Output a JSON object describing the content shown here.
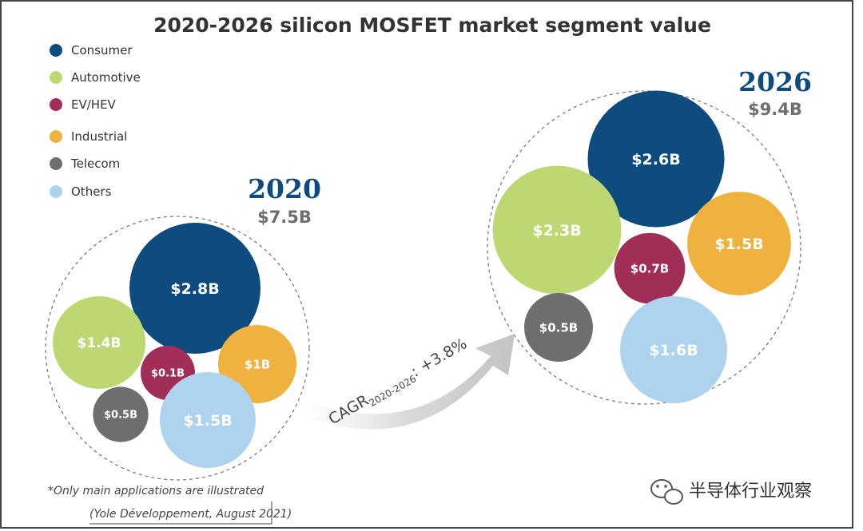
{
  "chart_data": {
    "type": "bubble",
    "title": "2020-2026 silicon MOSFET market segment value",
    "legend": [
      {
        "name": "Consumer",
        "color": "#0e4c80"
      },
      {
        "name": "Automotive",
        "color": "#bdd772"
      },
      {
        "name": "EV/HEV",
        "color": "#a12e57"
      },
      {
        "name": "Industrial",
        "color": "#f0b23e"
      },
      {
        "name": "Telecom",
        "color": "#6d6e70"
      },
      {
        "name": "Others",
        "color": "#aed3ef"
      }
    ],
    "groups": [
      {
        "year": "2020",
        "total": "$7.5B",
        "bubbles": [
          {
            "segment": "Consumer",
            "value": 2.8,
            "label": "$2.8B"
          },
          {
            "segment": "Automotive",
            "value": 1.4,
            "label": "$1.4B"
          },
          {
            "segment": "EV/HEV",
            "value": 0.1,
            "label": "$0.1B"
          },
          {
            "segment": "Industrial",
            "value": 1.0,
            "label": "$1B"
          },
          {
            "segment": "Telecom",
            "value": 0.5,
            "label": "$0.5B"
          },
          {
            "segment": "Others",
            "value": 1.5,
            "label": "$1.5B"
          }
        ]
      },
      {
        "year": "2026",
        "total": "$9.4B",
        "bubbles": [
          {
            "segment": "Consumer",
            "value": 2.6,
            "label": "$2.6B"
          },
          {
            "segment": "Automotive",
            "value": 2.3,
            "label": "$2.3B"
          },
          {
            "segment": "EV/HEV",
            "value": 0.7,
            "label": "$0.7B"
          },
          {
            "segment": "Industrial",
            "value": 1.5,
            "label": "$1.5B"
          },
          {
            "segment": "Telecom",
            "value": 0.5,
            "label": "$0.5B"
          },
          {
            "segment": "Others",
            "value": 1.6,
            "label": "$1.6B"
          }
        ]
      }
    ],
    "cagr": {
      "prefix": "CAGR",
      "period": "2020-2026",
      "suffix": ": +3.8%"
    },
    "note": "*Only main applications are illustrated",
    "source": "(Yole Développement, August 2021)"
  },
  "watermark": "半导体行业观察"
}
